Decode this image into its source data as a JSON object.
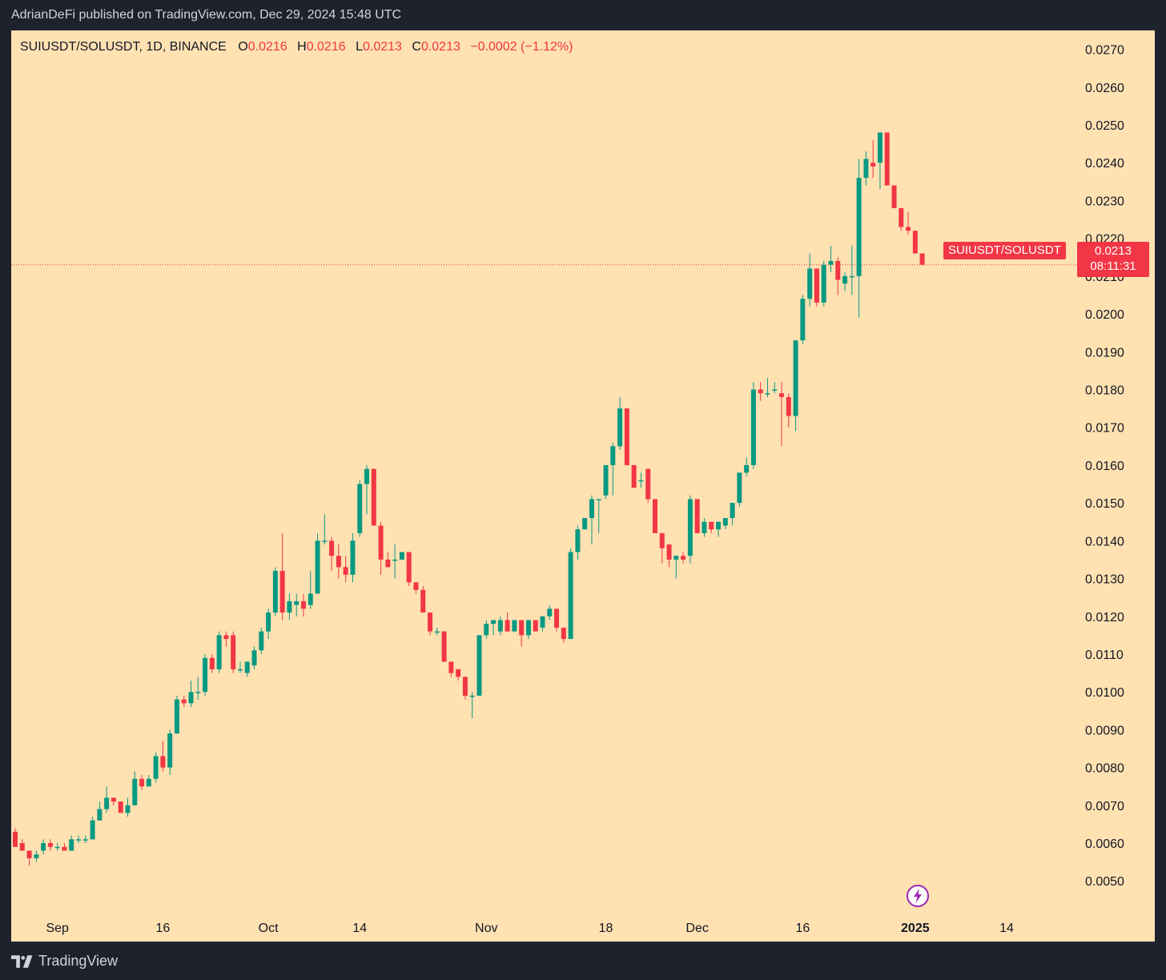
{
  "header": {
    "published_text": "AdrianDeFi published on TradingView.com, Dec 29, 2024 15:48 UTC"
  },
  "legend": {
    "symbol": "SUIUSDT/SOLUSDT, 1D, BINANCE",
    "open_label": "O",
    "open": "0.0216",
    "high_label": "H",
    "high": "0.0216",
    "low_label": "L",
    "low": "0.0213",
    "close_label": "C",
    "close": "0.0213",
    "change": "−0.0002 (−1.12%)"
  },
  "price_tag": {
    "symbol": "SUIUSDT/SOLUSDT",
    "price": "0.0213",
    "countdown": "08:11:31"
  },
  "footer": {
    "brand": "TradingView"
  },
  "icons": {
    "logo": "tradingview-logo-icon",
    "bolt": "lightning-bolt-icon"
  },
  "colors": {
    "background": "#ffe1b2",
    "frame": "#1e222d",
    "up": "#089981",
    "down": "#f23645",
    "bolt_accent": "#9c27b0"
  },
  "chart_data": {
    "type": "candlestick",
    "title": "",
    "xlabel": "",
    "ylabel": "",
    "ylim": [
      0.0042,
      0.0275
    ],
    "y_ticks": [
      "0.0050",
      "0.0060",
      "0.0070",
      "0.0080",
      "0.0090",
      "0.0100",
      "0.0110",
      "0.0120",
      "0.0130",
      "0.0140",
      "0.0150",
      "0.0160",
      "0.0170",
      "0.0180",
      "0.0190",
      "0.0200",
      "0.0210",
      "0.0220",
      "0.0230",
      "0.0240",
      "0.0250",
      "0.0260",
      "0.0270"
    ],
    "x_ticks": [
      {
        "label": "Sep",
        "date": "2024-09-01",
        "bold": false
      },
      {
        "label": "16",
        "date": "2024-09-16",
        "bold": false
      },
      {
        "label": "Oct",
        "date": "2024-10-01",
        "bold": false
      },
      {
        "label": "14",
        "date": "2024-10-14",
        "bold": false
      },
      {
        "label": "Nov",
        "date": "2024-11-01",
        "bold": false
      },
      {
        "label": "18",
        "date": "2024-11-18",
        "bold": false
      },
      {
        "label": "Dec",
        "date": "2024-12-01",
        "bold": false
      },
      {
        "label": "16",
        "date": "2024-12-16",
        "bold": false
      },
      {
        "label": "2025",
        "date": "2025-01-01",
        "bold": true
      },
      {
        "label": "14",
        "date": "2025-01-14",
        "bold": false
      }
    ],
    "last_price": 0.0213,
    "start_date": "2024-08-26",
    "end_date": "2025-01-19",
    "candles": [
      {
        "date": "2024-08-26",
        "o": 0.0063,
        "h": 0.0064,
        "l": 0.0059,
        "c": 0.0059
      },
      {
        "date": "2024-08-27",
        "o": 0.006,
        "h": 0.0061,
        "l": 0.0058,
        "c": 0.0058
      },
      {
        "date": "2024-08-28",
        "o": 0.0058,
        "h": 0.0058,
        "l": 0.0054,
        "c": 0.0056
      },
      {
        "date": "2024-08-29",
        "o": 0.0056,
        "h": 0.0058,
        "l": 0.0055,
        "c": 0.0057
      },
      {
        "date": "2024-08-30",
        "o": 0.0058,
        "h": 0.0061,
        "l": 0.0057,
        "c": 0.006
      },
      {
        "date": "2024-08-31",
        "o": 0.006,
        "h": 0.0061,
        "l": 0.0058,
        "c": 0.0059
      },
      {
        "date": "2024-09-01",
        "o": 0.0059,
        "h": 0.006,
        "l": 0.0058,
        "c": 0.0059
      },
      {
        "date": "2024-09-02",
        "o": 0.0059,
        "h": 0.006,
        "l": 0.0058,
        "c": 0.0058
      },
      {
        "date": "2024-09-03",
        "o": 0.0058,
        "h": 0.0062,
        "l": 0.0058,
        "c": 0.0061
      },
      {
        "date": "2024-09-04",
        "o": 0.0061,
        "h": 0.0062,
        "l": 0.006,
        "c": 0.0061
      },
      {
        "date": "2024-09-05",
        "o": 0.0061,
        "h": 0.0062,
        "l": 0.006,
        "c": 0.0061
      },
      {
        "date": "2024-09-06",
        "o": 0.0061,
        "h": 0.0067,
        "l": 0.0061,
        "c": 0.0066
      },
      {
        "date": "2024-09-07",
        "o": 0.0066,
        "h": 0.0071,
        "l": 0.0066,
        "c": 0.0069
      },
      {
        "date": "2024-09-08",
        "o": 0.0069,
        "h": 0.0075,
        "l": 0.0068,
        "c": 0.0072
      },
      {
        "date": "2024-09-09",
        "o": 0.0072,
        "h": 0.0072,
        "l": 0.007,
        "c": 0.0071
      },
      {
        "date": "2024-09-10",
        "o": 0.0071,
        "h": 0.0071,
        "l": 0.0068,
        "c": 0.0068
      },
      {
        "date": "2024-09-11",
        "o": 0.0068,
        "h": 0.0072,
        "l": 0.0067,
        "c": 0.007
      },
      {
        "date": "2024-09-12",
        "o": 0.007,
        "h": 0.0079,
        "l": 0.007,
        "c": 0.0077
      },
      {
        "date": "2024-09-13",
        "o": 0.0077,
        "h": 0.0078,
        "l": 0.0074,
        "c": 0.0075
      },
      {
        "date": "2024-09-14",
        "o": 0.0075,
        "h": 0.0078,
        "l": 0.0075,
        "c": 0.0077
      },
      {
        "date": "2024-09-15",
        "o": 0.0077,
        "h": 0.0084,
        "l": 0.0076,
        "c": 0.0083
      },
      {
        "date": "2024-09-16",
        "o": 0.0083,
        "h": 0.0087,
        "l": 0.0079,
        "c": 0.008
      },
      {
        "date": "2024-09-17",
        "o": 0.008,
        "h": 0.009,
        "l": 0.0078,
        "c": 0.0089
      },
      {
        "date": "2024-09-18",
        "o": 0.0089,
        "h": 0.0099,
        "l": 0.0089,
        "c": 0.0098
      },
      {
        "date": "2024-09-19",
        "o": 0.0098,
        "h": 0.0099,
        "l": 0.0096,
        "c": 0.0097
      },
      {
        "date": "2024-09-20",
        "o": 0.0097,
        "h": 0.0103,
        "l": 0.0096,
        "c": 0.01
      },
      {
        "date": "2024-09-21",
        "o": 0.01,
        "h": 0.0104,
        "l": 0.0098,
        "c": 0.01
      },
      {
        "date": "2024-09-22",
        "o": 0.01,
        "h": 0.011,
        "l": 0.0099,
        "c": 0.0109
      },
      {
        "date": "2024-09-23",
        "o": 0.0109,
        "h": 0.011,
        "l": 0.0105,
        "c": 0.0106
      },
      {
        "date": "2024-09-24",
        "o": 0.0106,
        "h": 0.0116,
        "l": 0.0105,
        "c": 0.0115
      },
      {
        "date": "2024-09-25",
        "o": 0.0115,
        "h": 0.0116,
        "l": 0.0112,
        "c": 0.0114
      },
      {
        "date": "2024-09-26",
        "o": 0.0115,
        "h": 0.0116,
        "l": 0.0105,
        "c": 0.0106
      },
      {
        "date": "2024-09-27",
        "o": 0.0106,
        "h": 0.0108,
        "l": 0.0105,
        "c": 0.0106
      },
      {
        "date": "2024-09-28",
        "o": 0.0105,
        "h": 0.0108,
        "l": 0.0104,
        "c": 0.0108
      },
      {
        "date": "2024-09-29",
        "o": 0.0107,
        "h": 0.0112,
        "l": 0.0106,
        "c": 0.0111
      },
      {
        "date": "2024-09-30",
        "o": 0.0111,
        "h": 0.0117,
        "l": 0.011,
        "c": 0.0116
      },
      {
        "date": "2024-10-01",
        "o": 0.0116,
        "h": 0.0122,
        "l": 0.0114,
        "c": 0.0121
      },
      {
        "date": "2024-10-02",
        "o": 0.0121,
        "h": 0.0133,
        "l": 0.012,
        "c": 0.0132
      },
      {
        "date": "2024-10-03",
        "o": 0.0132,
        "h": 0.0142,
        "l": 0.0119,
        "c": 0.0121
      },
      {
        "date": "2024-10-04",
        "o": 0.0121,
        "h": 0.0126,
        "l": 0.0119,
        "c": 0.0124
      },
      {
        "date": "2024-10-05",
        "o": 0.0123,
        "h": 0.0126,
        "l": 0.012,
        "c": 0.0124
      },
      {
        "date": "2024-10-06",
        "o": 0.0124,
        "h": 0.0126,
        "l": 0.012,
        "c": 0.0122
      },
      {
        "date": "2024-10-07",
        "o": 0.0123,
        "h": 0.0132,
        "l": 0.0122,
        "c": 0.0126
      },
      {
        "date": "2024-10-08",
        "o": 0.0126,
        "h": 0.0142,
        "l": 0.0126,
        "c": 0.014
      },
      {
        "date": "2024-10-09",
        "o": 0.014,
        "h": 0.0147,
        "l": 0.0139,
        "c": 0.014
      },
      {
        "date": "2024-10-10",
        "o": 0.014,
        "h": 0.0141,
        "l": 0.0132,
        "c": 0.0136
      },
      {
        "date": "2024-10-11",
        "o": 0.0136,
        "h": 0.0139,
        "l": 0.013,
        "c": 0.0133
      },
      {
        "date": "2024-10-12",
        "o": 0.0133,
        "h": 0.0136,
        "l": 0.0129,
        "c": 0.0131
      },
      {
        "date": "2024-10-13",
        "o": 0.0131,
        "h": 0.0142,
        "l": 0.0129,
        "c": 0.014
      },
      {
        "date": "2024-10-14",
        "o": 0.0142,
        "h": 0.0156,
        "l": 0.0141,
        "c": 0.0155
      },
      {
        "date": "2024-10-15",
        "o": 0.0155,
        "h": 0.016,
        "l": 0.0147,
        "c": 0.0159
      },
      {
        "date": "2024-10-16",
        "o": 0.0159,
        "h": 0.0159,
        "l": 0.0144,
        "c": 0.0144
      },
      {
        "date": "2024-10-17",
        "o": 0.0144,
        "h": 0.0145,
        "l": 0.0131,
        "c": 0.0135
      },
      {
        "date": "2024-10-18",
        "o": 0.0135,
        "h": 0.0137,
        "l": 0.0133,
        "c": 0.0133
      },
      {
        "date": "2024-10-19",
        "o": 0.0135,
        "h": 0.0139,
        "l": 0.013,
        "c": 0.0135
      },
      {
        "date": "2024-10-20",
        "o": 0.0135,
        "h": 0.0137,
        "l": 0.0135,
        "c": 0.0137
      },
      {
        "date": "2024-10-21",
        "o": 0.0137,
        "h": 0.0137,
        "l": 0.0128,
        "c": 0.0129
      },
      {
        "date": "2024-10-22",
        "o": 0.0129,
        "h": 0.0129,
        "l": 0.0126,
        "c": 0.0127
      },
      {
        "date": "2024-10-23",
        "o": 0.0127,
        "h": 0.0128,
        "l": 0.0121,
        "c": 0.0121
      },
      {
        "date": "2024-10-24",
        "o": 0.0121,
        "h": 0.0121,
        "l": 0.0115,
        "c": 0.0116
      },
      {
        "date": "2024-10-25",
        "o": 0.0116,
        "h": 0.0117,
        "l": 0.0115,
        "c": 0.0116
      },
      {
        "date": "2024-10-26",
        "o": 0.0116,
        "h": 0.0116,
        "l": 0.0108,
        "c": 0.0108
      },
      {
        "date": "2024-10-27",
        "o": 0.0108,
        "h": 0.0108,
        "l": 0.0104,
        "c": 0.0105
      },
      {
        "date": "2024-10-28",
        "o": 0.0106,
        "h": 0.0106,
        "l": 0.0103,
        "c": 0.0104
      },
      {
        "date": "2024-10-29",
        "o": 0.0104,
        "h": 0.0104,
        "l": 0.0098,
        "c": 0.0099
      },
      {
        "date": "2024-10-30",
        "o": 0.0099,
        "h": 0.01,
        "l": 0.0093,
        "c": 0.0099
      },
      {
        "date": "2024-10-31",
        "o": 0.0099,
        "h": 0.0115,
        "l": 0.0099,
        "c": 0.0115
      },
      {
        "date": "2024-11-01",
        "o": 0.0115,
        "h": 0.0119,
        "l": 0.0114,
        "c": 0.0118
      },
      {
        "date": "2024-11-02",
        "o": 0.0118,
        "h": 0.0119,
        "l": 0.0115,
        "c": 0.0119
      },
      {
        "date": "2024-11-03",
        "o": 0.0116,
        "h": 0.012,
        "l": 0.0115,
        "c": 0.0119
      },
      {
        "date": "2024-11-04",
        "o": 0.0119,
        "h": 0.0121,
        "l": 0.0116,
        "c": 0.0116
      },
      {
        "date": "2024-11-05",
        "o": 0.0116,
        "h": 0.0119,
        "l": 0.0116,
        "c": 0.0119
      },
      {
        "date": "2024-11-06",
        "o": 0.0119,
        "h": 0.0119,
        "l": 0.0112,
        "c": 0.0115
      },
      {
        "date": "2024-11-07",
        "o": 0.0115,
        "h": 0.0119,
        "l": 0.0114,
        "c": 0.0119
      },
      {
        "date": "2024-11-08",
        "o": 0.0119,
        "h": 0.0119,
        "l": 0.0116,
        "c": 0.0116
      },
      {
        "date": "2024-11-09",
        "o": 0.0117,
        "h": 0.012,
        "l": 0.0116,
        "c": 0.012
      },
      {
        "date": "2024-11-10",
        "o": 0.012,
        "h": 0.0123,
        "l": 0.0119,
        "c": 0.0122
      },
      {
        "date": "2024-11-11",
        "o": 0.0122,
        "h": 0.0122,
        "l": 0.0116,
        "c": 0.0117
      },
      {
        "date": "2024-11-12",
        "o": 0.0117,
        "h": 0.0117,
        "l": 0.0113,
        "c": 0.0114
      },
      {
        "date": "2024-11-13",
        "o": 0.0114,
        "h": 0.0138,
        "l": 0.0114,
        "c": 0.0137
      },
      {
        "date": "2024-11-14",
        "o": 0.0137,
        "h": 0.0144,
        "l": 0.0135,
        "c": 0.0143
      },
      {
        "date": "2024-11-15",
        "o": 0.0143,
        "h": 0.0146,
        "l": 0.0143,
        "c": 0.0146
      },
      {
        "date": "2024-11-16",
        "o": 0.0146,
        "h": 0.0152,
        "l": 0.0139,
        "c": 0.0151
      },
      {
        "date": "2024-11-17",
        "o": 0.0151,
        "h": 0.0151,
        "l": 0.0142,
        "c": 0.0151
      },
      {
        "date": "2024-11-18",
        "o": 0.0152,
        "h": 0.016,
        "l": 0.0151,
        "c": 0.016
      },
      {
        "date": "2024-11-19",
        "o": 0.016,
        "h": 0.0166,
        "l": 0.0152,
        "c": 0.0165
      },
      {
        "date": "2024-11-20",
        "o": 0.0165,
        "h": 0.0178,
        "l": 0.0164,
        "c": 0.0175
      },
      {
        "date": "2024-11-21",
        "o": 0.0175,
        "h": 0.0175,
        "l": 0.016,
        "c": 0.016
      },
      {
        "date": "2024-11-22",
        "o": 0.016,
        "h": 0.016,
        "l": 0.0154,
        "c": 0.0154
      },
      {
        "date": "2024-11-23",
        "o": 0.0156,
        "h": 0.0158,
        "l": 0.0154,
        "c": 0.0156
      },
      {
        "date": "2024-11-24",
        "o": 0.0159,
        "h": 0.0159,
        "l": 0.015,
        "c": 0.0151
      },
      {
        "date": "2024-11-25",
        "o": 0.0151,
        "h": 0.0151,
        "l": 0.0142,
        "c": 0.0142
      },
      {
        "date": "2024-11-26",
        "o": 0.0142,
        "h": 0.0142,
        "l": 0.0134,
        "c": 0.0138
      },
      {
        "date": "2024-11-27",
        "o": 0.0139,
        "h": 0.0139,
        "l": 0.0133,
        "c": 0.0135
      },
      {
        "date": "2024-11-28",
        "o": 0.0135,
        "h": 0.0136,
        "l": 0.013,
        "c": 0.0136
      },
      {
        "date": "2024-11-29",
        "o": 0.0136,
        "h": 0.0137,
        "l": 0.0134,
        "c": 0.0135
      },
      {
        "date": "2024-11-30",
        "o": 0.0136,
        "h": 0.0152,
        "l": 0.0134,
        "c": 0.0151
      },
      {
        "date": "2024-12-01",
        "o": 0.0151,
        "h": 0.0151,
        "l": 0.0142,
        "c": 0.0142
      },
      {
        "date": "2024-12-02",
        "o": 0.0142,
        "h": 0.0146,
        "l": 0.0141,
        "c": 0.0145
      },
      {
        "date": "2024-12-03",
        "o": 0.0145,
        "h": 0.0145,
        "l": 0.0142,
        "c": 0.0143
      },
      {
        "date": "2024-12-04",
        "o": 0.0143,
        "h": 0.0145,
        "l": 0.0141,
        "c": 0.0145
      },
      {
        "date": "2024-12-05",
        "o": 0.0144,
        "h": 0.0146,
        "l": 0.0143,
        "c": 0.0146
      },
      {
        "date": "2024-12-06",
        "o": 0.0146,
        "h": 0.015,
        "l": 0.0144,
        "c": 0.015
      },
      {
        "date": "2024-12-07",
        "o": 0.015,
        "h": 0.0158,
        "l": 0.0149,
        "c": 0.0158
      },
      {
        "date": "2024-12-08",
        "o": 0.0158,
        "h": 0.0162,
        "l": 0.0157,
        "c": 0.016
      },
      {
        "date": "2024-12-09",
        "o": 0.016,
        "h": 0.0182,
        "l": 0.0159,
        "c": 0.018
      },
      {
        "date": "2024-12-10",
        "o": 0.018,
        "h": 0.0182,
        "l": 0.0177,
        "c": 0.0179
      },
      {
        "date": "2024-12-11",
        "o": 0.0179,
        "h": 0.0183,
        "l": 0.0178,
        "c": 0.0179
      },
      {
        "date": "2024-12-12",
        "o": 0.018,
        "h": 0.0182,
        "l": 0.0179,
        "c": 0.018
      },
      {
        "date": "2024-12-13",
        "o": 0.0179,
        "h": 0.0182,
        "l": 0.0165,
        "c": 0.0178
      },
      {
        "date": "2024-12-14",
        "o": 0.0178,
        "h": 0.0179,
        "l": 0.017,
        "c": 0.0173
      },
      {
        "date": "2024-12-15",
        "o": 0.0173,
        "h": 0.0193,
        "l": 0.0169,
        "c": 0.0193
      },
      {
        "date": "2024-12-16",
        "o": 0.0193,
        "h": 0.0205,
        "l": 0.0192,
        "c": 0.0204
      },
      {
        "date": "2024-12-17",
        "o": 0.0204,
        "h": 0.0216,
        "l": 0.0202,
        "c": 0.0212
      },
      {
        "date": "2024-12-18",
        "o": 0.0212,
        "h": 0.0212,
        "l": 0.0202,
        "c": 0.0203
      },
      {
        "date": "2024-12-19",
        "o": 0.0203,
        "h": 0.0214,
        "l": 0.0202,
        "c": 0.0213
      },
      {
        "date": "2024-12-20",
        "o": 0.0213,
        "h": 0.0218,
        "l": 0.0211,
        "c": 0.0214
      },
      {
        "date": "2024-12-21",
        "o": 0.0214,
        "h": 0.0215,
        "l": 0.0205,
        "c": 0.0209
      },
      {
        "date": "2024-12-22",
        "o": 0.0208,
        "h": 0.0211,
        "l": 0.0206,
        "c": 0.021
      },
      {
        "date": "2024-12-23",
        "o": 0.021,
        "h": 0.0218,
        "l": 0.0205,
        "c": 0.021
      },
      {
        "date": "2024-12-24",
        "o": 0.021,
        "h": 0.0241,
        "l": 0.0199,
        "c": 0.0236
      },
      {
        "date": "2024-12-25",
        "o": 0.0236,
        "h": 0.0243,
        "l": 0.0234,
        "c": 0.0241
      },
      {
        "date": "2024-12-26",
        "o": 0.024,
        "h": 0.0246,
        "l": 0.0236,
        "c": 0.0239
      },
      {
        "date": "2024-12-27",
        "o": 0.024,
        "h": 0.0248,
        "l": 0.0233,
        "c": 0.0248
      },
      {
        "date": "2024-12-28",
        "o": 0.0248,
        "h": 0.0248,
        "l": 0.0234,
        "c": 0.0234
      },
      {
        "date": "2024-12-29",
        "o": 0.0234,
        "h": 0.0234,
        "l": 0.0228,
        "c": 0.0228
      },
      {
        "date": "2024-12-30",
        "o": 0.0228,
        "h": 0.0228,
        "l": 0.0222,
        "c": 0.0223
      },
      {
        "date": "2024-12-31",
        "o": 0.0223,
        "h": 0.0227,
        "l": 0.0221,
        "c": 0.0222
      },
      {
        "date": "2025-01-01",
        "o": 0.0222,
        "h": 0.0222,
        "l": 0.0216,
        "c": 0.0216
      },
      {
        "date": "2025-01-02",
        "o": 0.0216,
        "h": 0.0216,
        "l": 0.0213,
        "c": 0.0213
      }
    ]
  }
}
